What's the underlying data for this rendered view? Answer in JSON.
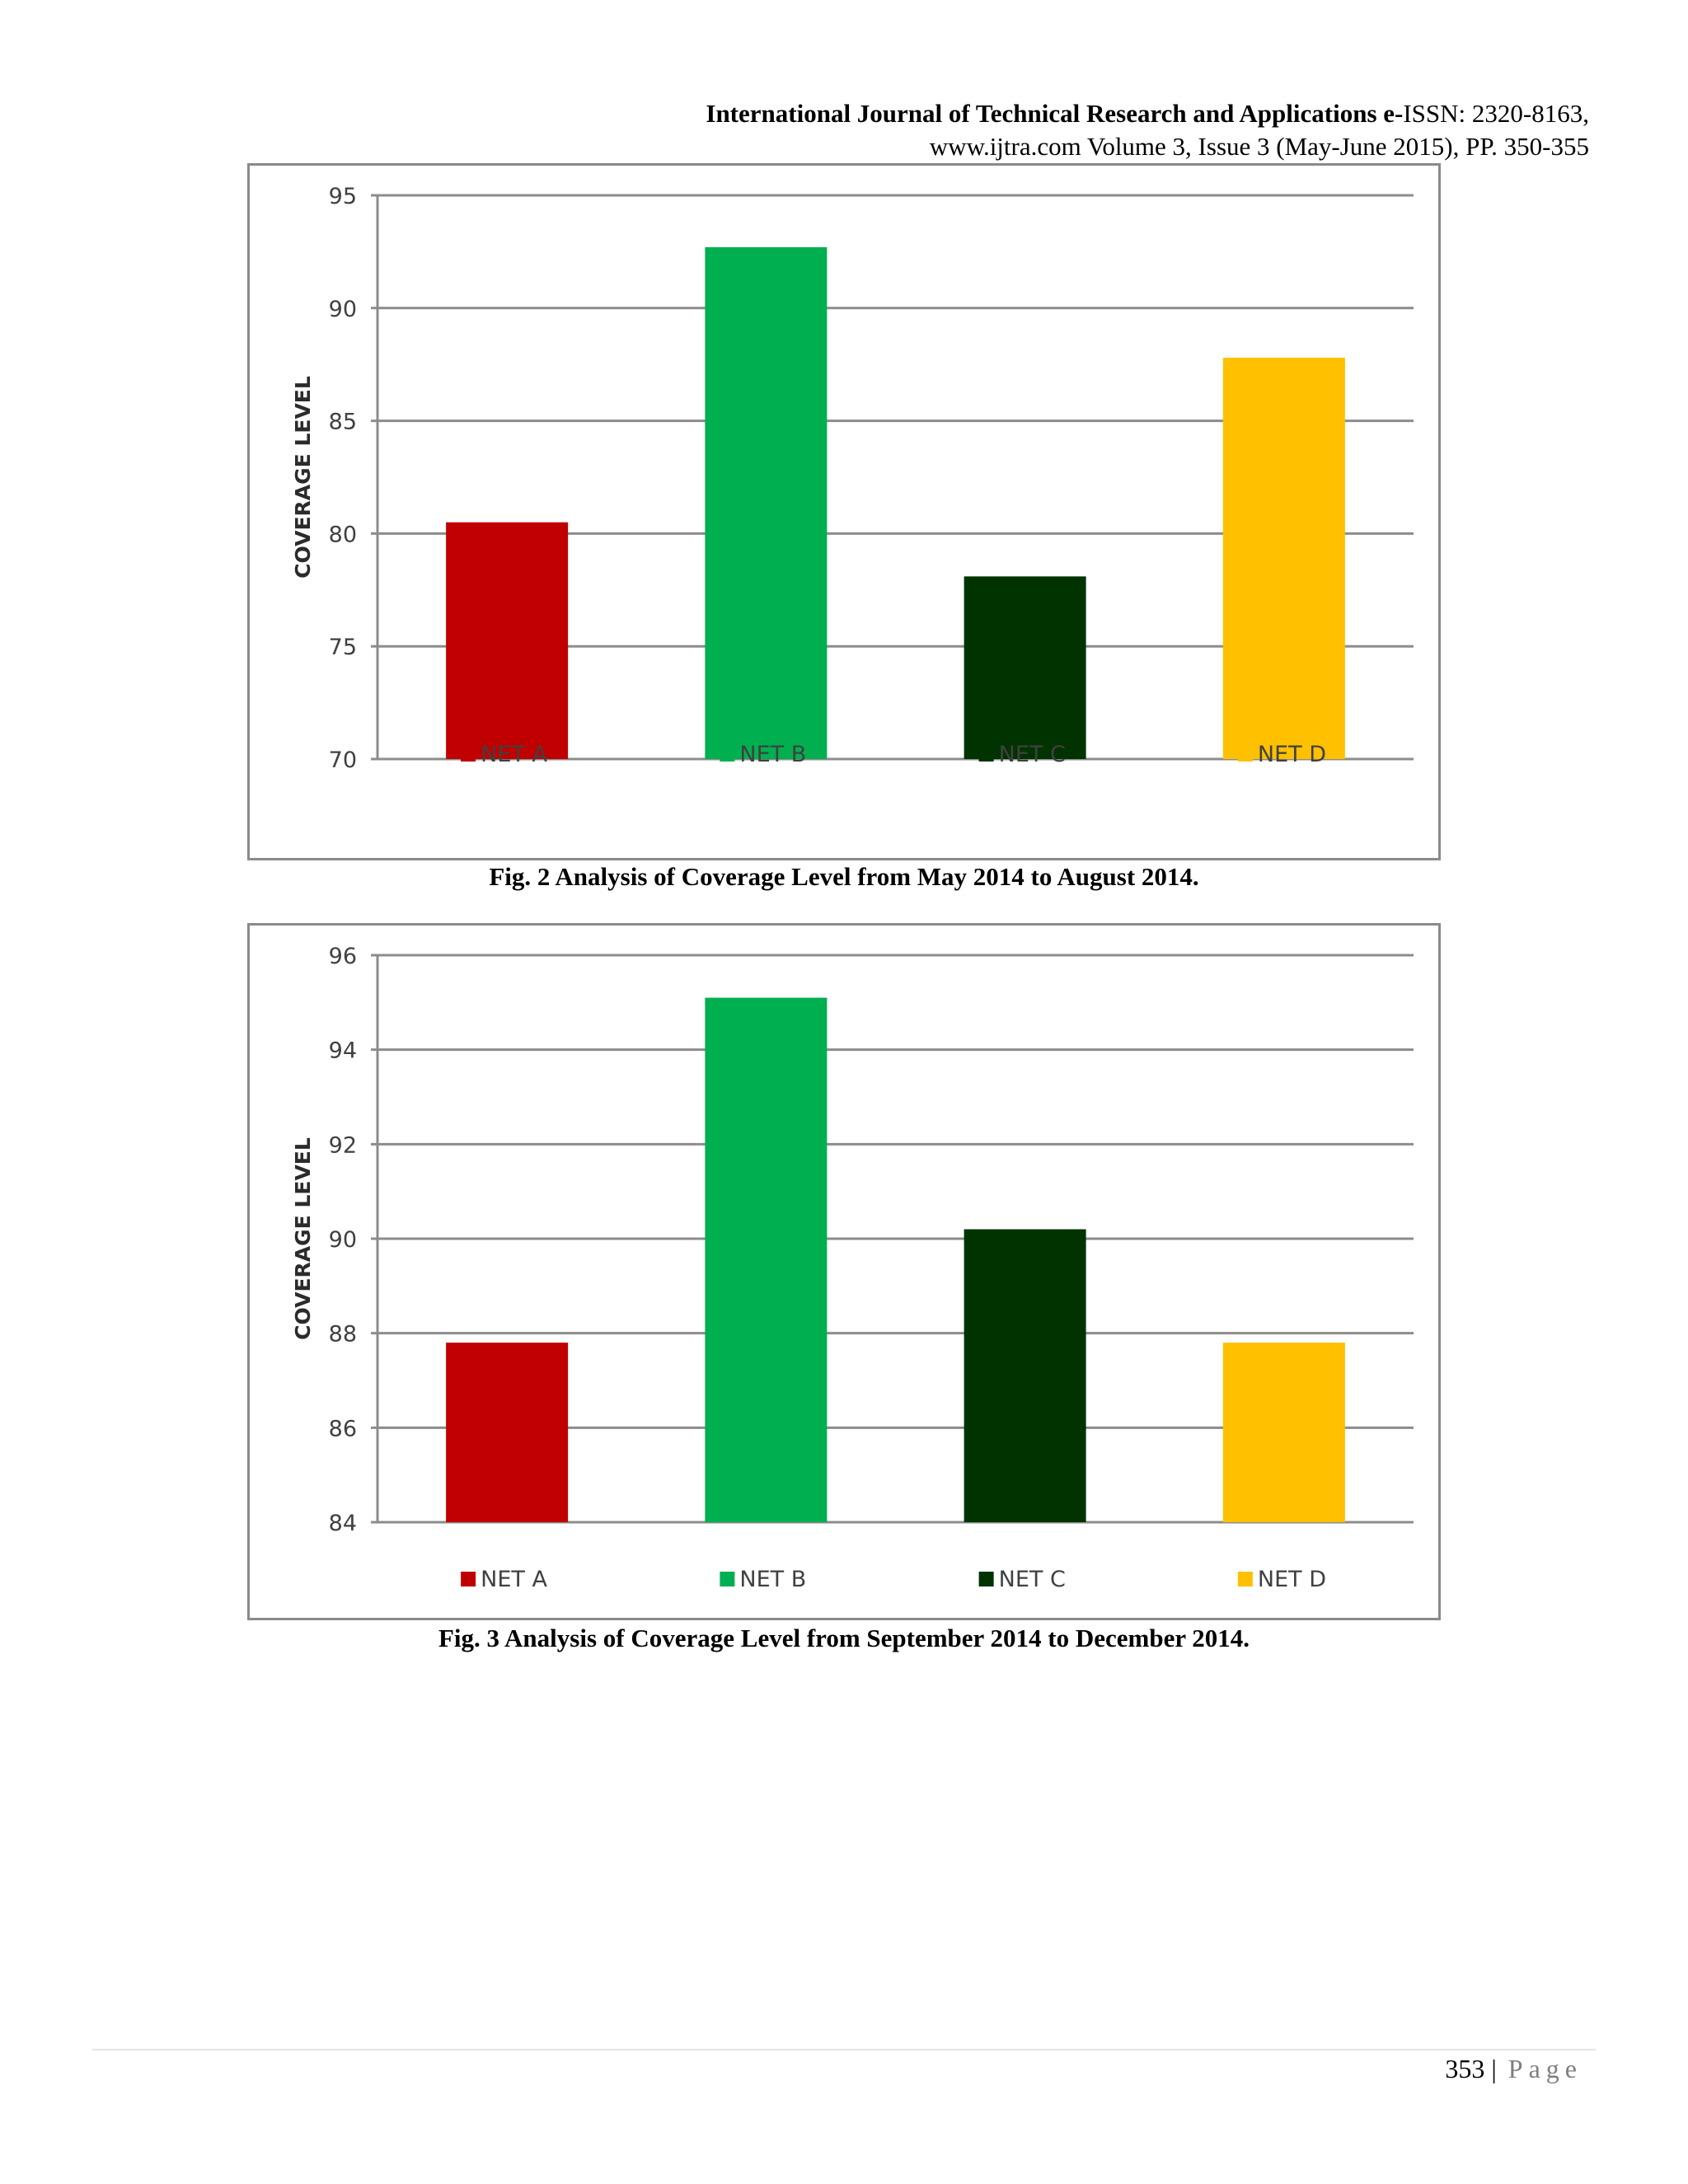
{
  "header": {
    "journal_bold": "International Journal of Technical Research and Applications e-",
    "journal_rest": "ISSN: 2320-8163,",
    "line2": "www.ijtra.com Volume 3, Issue 3 (May-June 2015), PP. 350-355"
  },
  "colors": {
    "NET A": "#c00000",
    "NET B": "#00b050",
    "NET C": "#003300",
    "NET D": "#ffc000"
  },
  "chart_data": [
    {
      "type": "bar",
      "categories": [
        "NET A",
        "NET B",
        "NET C",
        "NET D"
      ],
      "values": [
        80.5,
        92.7,
        78.1,
        87.8
      ],
      "ylabel": "COVERAGE LEVEL",
      "ylim": [
        70,
        95
      ],
      "yticks": [
        "70",
        "75",
        "80",
        "85",
        "90",
        "95"
      ],
      "grid": true,
      "legend": [
        "NET A",
        "NET B",
        "NET C",
        "NET D"
      ],
      "legend_position": "bottom"
    },
    {
      "type": "bar",
      "categories": [
        "NET A",
        "NET B",
        "NET C",
        "NET D"
      ],
      "values": [
        87.8,
        95.1,
        90.2,
        87.8
      ],
      "ylabel": "COVERAGE LEVEL",
      "ylim": [
        84,
        96
      ],
      "yticks": [
        "84",
        "86",
        "88",
        "90",
        "92",
        "94",
        "96"
      ],
      "grid": true,
      "legend": [
        "NET A",
        "NET B",
        "NET C",
        "NET D"
      ],
      "legend_position": "bottom"
    }
  ],
  "captions": {
    "fig2": "Fig. 2 Analysis of Coverage Level from May 2014 to August 2014.",
    "fig3": "Fig. 3 Analysis of Coverage Level from September 2014 to December 2014."
  },
  "footer": {
    "page_number": "353",
    "separator": "|",
    "page_word": "Page"
  }
}
